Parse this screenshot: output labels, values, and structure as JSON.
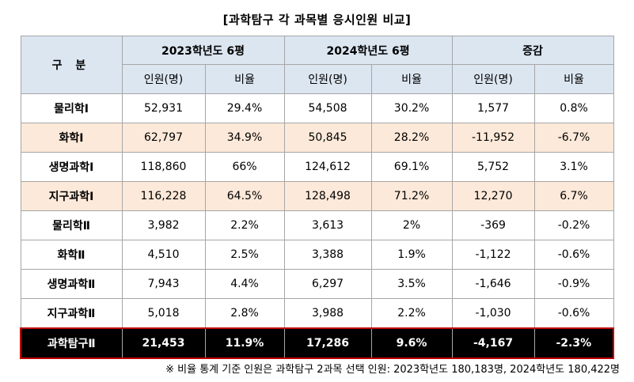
{
  "title": "[과학탐구 각 과목별 응시인원 비교]",
  "header": {
    "category": "구 분",
    "group_2023": "2023학년도 6평",
    "group_2024": "2024학년도 6평",
    "group_change": "증감",
    "col_people": "인원(명)",
    "col_ratio": "비율"
  },
  "rows": [
    {
      "subject": "물리학Ⅰ",
      "p2023": "52,931",
      "r2023": "29.4%",
      "p2024": "54,508",
      "r2024": "30.2%",
      "pchg": "1,577",
      "rchg": "0.8%"
    },
    {
      "subject": "화학Ⅰ",
      "p2023": "62,797",
      "r2023": "34.9%",
      "p2024": "50,845",
      "r2024": "28.2%",
      "pchg": "-11,952",
      "rchg": "-6.7%"
    },
    {
      "subject": "생명과학Ⅰ",
      "p2023": "118,860",
      "r2023": "66%",
      "p2024": "124,612",
      "r2024": "69.1%",
      "pchg": "5,752",
      "rchg": "3.1%"
    },
    {
      "subject": "지구과학Ⅰ",
      "p2023": "116,228",
      "r2023": "64.5%",
      "p2024": "128,498",
      "r2024": "71.2%",
      "pchg": "12,270",
      "rchg": "6.7%"
    },
    {
      "subject": "물리학Ⅱ",
      "p2023": "3,982",
      "r2023": "2.2%",
      "p2024": "3,613",
      "r2024": "2%",
      "pchg": "-369",
      "rchg": "-0.2%"
    },
    {
      "subject": "화학Ⅱ",
      "p2023": "4,510",
      "r2023": "2.5%",
      "p2024": "3,388",
      "r2024": "1.9%",
      "pchg": "-1,122",
      "rchg": "-0.6%"
    },
    {
      "subject": "생명과학Ⅱ",
      "p2023": "7,943",
      "r2023": "4.4%",
      "p2024": "6,297",
      "r2024": "3.5%",
      "pchg": "-1,646",
      "rchg": "-0.9%"
    },
    {
      "subject": "지구과학Ⅱ",
      "p2023": "5,018",
      "r2023": "2.8%",
      "p2024": "3,988",
      "r2024": "2.2%",
      "pchg": "-1,030",
      "rchg": "-0.6%"
    }
  ],
  "total": {
    "subject": "과학탐구Ⅱ",
    "p2023": "21,453",
    "r2023": "11.9%",
    "p2024": "17,286",
    "r2024": "9.6%",
    "pchg": "-4,167",
    "rchg": "-2.3%"
  },
  "note": "※ 비율 통계 기준 인원은 과학탐구 2과목 선택 인원: 2023학년도 180,183명, 2024학년도 180,422명",
  "colors": {
    "header_bg": "#dce6f1",
    "highlight_bg": "#fde9d9",
    "total_bg": "#000000",
    "total_border": "#c00000"
  }
}
